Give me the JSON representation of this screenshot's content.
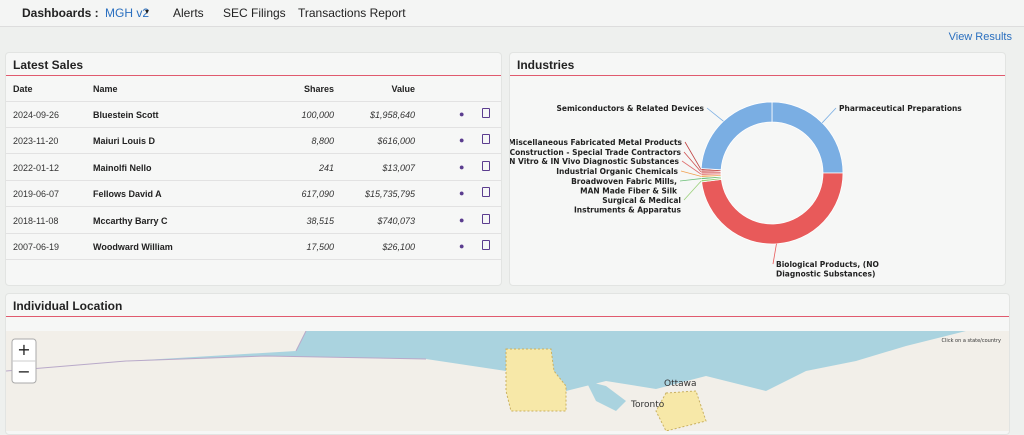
{
  "nav": {
    "label": "Dashboards :",
    "items": [
      "MGH v2",
      "Alerts",
      "SEC Filings",
      "Transactions Report"
    ],
    "action": "View Results"
  },
  "latest_sales": {
    "title": "Latest Sales",
    "columns": [
      "Date",
      "Name",
      "Shares",
      "Value"
    ],
    "rows": [
      [
        "2024-09-26",
        "Bluestein Scott",
        "100,000",
        "$1,958,640"
      ],
      [
        "2023-11-20",
        "Maiuri Louis D",
        "8,800",
        "$616,000"
      ],
      [
        "2022-01-12",
        "Mainolfi Nello",
        "241",
        "$13,007"
      ],
      [
        "2019-06-07",
        "Fellows David A",
        "617,090",
        "$15,735,795"
      ],
      [
        "2018-11-08",
        "Mccarthy Barry C",
        "38,515",
        "$740,073"
      ],
      [
        "2007-06-19",
        "Woodward William",
        "17,500",
        "$26,100"
      ]
    ]
  },
  "industries": {
    "title": "Industries",
    "type": "donut",
    "slices": [
      {
        "label_lines": [
          "Pharmaceutical Preparations"
        ],
        "value": 25,
        "color": "#7aaee3"
      },
      {
        "label_lines": [
          "Biological Products, (NO",
          "Diagnostic Substances)"
        ],
        "value": 48,
        "color": "#e85a5a"
      },
      {
        "label_lines": [
          "Surgical & Medical",
          "Instruments & Apparatus"
        ],
        "value": 0.5,
        "color": "#9bd17a"
      },
      {
        "label_lines": [
          "Broadwoven Fabric Mills,",
          "MAN Made Fiber & Silk"
        ],
        "value": 0.5,
        "color": "#6fc07a"
      },
      {
        "label_lines": [
          "Industrial Organic Chemicals"
        ],
        "value": 0.5,
        "color": "#f0a050"
      },
      {
        "label_lines": [
          "IN Vitro & IN Vivo Diagnostic Substances"
        ],
        "value": 0.5,
        "color": "#e07070"
      },
      {
        "label_lines": [
          "Construction - Special Trade Contractors"
        ],
        "value": 0.5,
        "color": "#d05050"
      },
      {
        "label_lines": [
          "Miscellaneous Fabricated Metal Products"
        ],
        "value": 0.5,
        "color": "#c04040"
      },
      {
        "label_lines": [
          "Semiconductors & Related Devices"
        ],
        "value": 24,
        "color": "#7aaee3"
      }
    ]
  },
  "location": {
    "title": "Individual Location",
    "hint": "Click on a state/country",
    "zoom_in": "+",
    "zoom_out": "−",
    "places": [
      "Ottawa",
      "Toronto"
    ]
  }
}
